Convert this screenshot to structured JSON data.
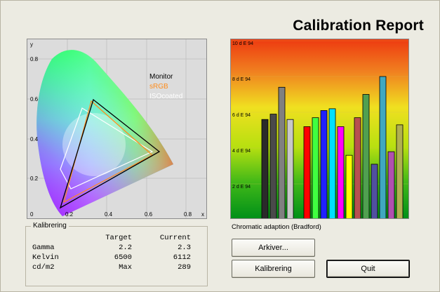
{
  "report": {
    "title": "Calibration Report"
  },
  "cie": {
    "x_label": "x",
    "y_label": "y",
    "ticks_x": [
      "0.2",
      "0.4",
      "0.6",
      "0.8"
    ],
    "ticks_y": [
      "0",
      "0.2",
      "0.4",
      "0.6",
      "0.8"
    ],
    "legend": [
      {
        "name": "Monitor",
        "color": "#000000"
      },
      {
        "name": "sRGB",
        "color": "#ff8c1a"
      },
      {
        "name": "ISOcoated",
        "color": "#ffffff"
      }
    ]
  },
  "bars": {
    "tick_labels": [
      "10 d E 94",
      "8 d E 94",
      "6 d E 94",
      "4 d E 94",
      "2 d E 94"
    ],
    "caption": "Chromatic adaption (Bradford)"
  },
  "chart_data": {
    "type": "bar",
    "ylabel": "",
    "ylim": [
      0,
      10
    ],
    "values": [
      5.6,
      5.9,
      7.4,
      5.6,
      5.2,
      5.7,
      6.1,
      6.2,
      5.2,
      3.6,
      5.7,
      7.0,
      3.1,
      8.0,
      3.8,
      5.3
    ],
    "colors": [
      "#2a2a2a",
      "#4a4a4a",
      "#808080",
      "#c8c8c8",
      "#ff0000",
      "#40ff40",
      "#2020ff",
      "#00e0ff",
      "#ff00ff",
      "#ffff00",
      "#b85050",
      "#50a050",
      "#5050a0",
      "#40a8c0",
      "#b050b0",
      "#b0b050"
    ]
  },
  "kalibrering": {
    "legend": "Kalibrering",
    "headers": {
      "target": "Target",
      "current": "Current"
    },
    "rows": [
      {
        "name": "Gamma",
        "target": "2.2",
        "current": "2.3"
      },
      {
        "name": "Kelvin",
        "target": "6500",
        "current": "6112"
      },
      {
        "name": "cd/m2",
        "target": "Max",
        "current": "289"
      }
    ]
  },
  "buttons": {
    "archive": "Arkiver...",
    "calibrate": "Kalibrering",
    "quit": "Quit"
  }
}
